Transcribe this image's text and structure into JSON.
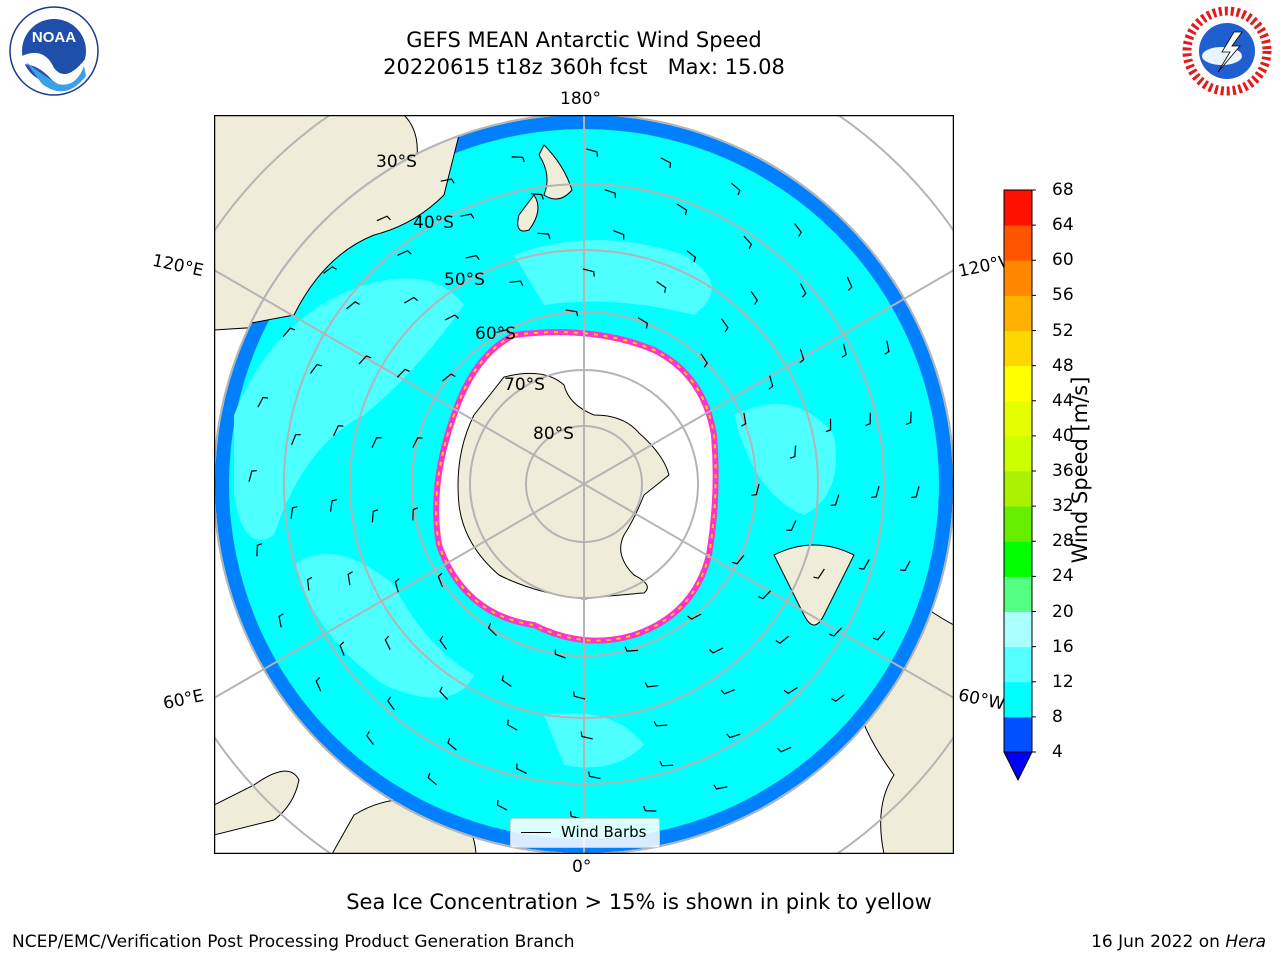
{
  "title": {
    "line1": "GEFS MEAN Antarctic Wind Speed",
    "line2": "20220615 t18z 360h fcst   Max: 15.08"
  },
  "map": {
    "projection": "south-polar-stereographic",
    "lon_labels": {
      "top": "180°",
      "left_upper": "120°E",
      "right_upper": "120°W",
      "left_lower": "60°E",
      "right_lower": "60°W",
      "bottom": "0°"
    },
    "lat_labels": [
      "30°S",
      "40°S",
      "50°S",
      "60°S",
      "70°S",
      "80°S"
    ],
    "colors": {
      "land": "#efedda",
      "ice": "#ffffff",
      "speed_8_12": "#00ffff",
      "speed_4_8": "#0080ff",
      "speed_12_16": "#55ffff",
      "grid": "#b4b4b4",
      "ice_edge": "#ff33cc"
    }
  },
  "legend": {
    "label": "Wind Barbs"
  },
  "colorbar": {
    "label": "Wind Speed [m/s]",
    "ticks": [
      4,
      8,
      12,
      16,
      20,
      24,
      28,
      32,
      36,
      40,
      44,
      48,
      52,
      56,
      60,
      64,
      68
    ],
    "colors": [
      "#0050ff",
      "#00ffff",
      "#55ffff",
      "#aaffff",
      "#55ff80",
      "#00ff00",
      "#66ee00",
      "#aaf000",
      "#ccff00",
      "#e6ff00",
      "#ffff00",
      "#ffd700",
      "#ffb000",
      "#ff8800",
      "#ff5500",
      "#ff1100"
    ],
    "under_color": "#0000ff"
  },
  "caption": "Sea Ice Concentration > 15% is shown in pink to yellow",
  "footer": {
    "left": "NCEP/EMC/Verification Post Processing Product Generation Branch",
    "right_date": "16 Jun 2022 on",
    "right_host": "Hera"
  },
  "logos": {
    "left": "NOAA",
    "right": "NATIONAL WEATHER SERVICE"
  }
}
